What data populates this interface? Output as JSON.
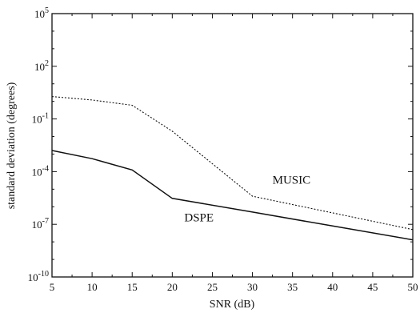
{
  "chart_data": {
    "type": "line",
    "title": "",
    "xlabel": "SNR (dB)",
    "ylabel": "standard deviation (degrees)",
    "xlim": [
      5,
      50
    ],
    "ylim_log10": [
      -10,
      5
    ],
    "y_scale": "log",
    "grid": false,
    "x_ticks": [
      5,
      10,
      15,
      20,
      25,
      30,
      35,
      40,
      45,
      50
    ],
    "x_tick_labels": [
      "5",
      "10",
      "15",
      "20",
      "25",
      "30",
      "35",
      "40",
      "45",
      "50"
    ],
    "y_ticks_log10": [
      -10,
      -7,
      -4,
      -1,
      2,
      5
    ],
    "y_tick_labels": [
      {
        "base": "10",
        "exp": "-10"
      },
      {
        "base": "10",
        "exp": "-7"
      },
      {
        "base": "10",
        "exp": "-4"
      },
      {
        "base": "10",
        "exp": "-1"
      },
      {
        "base": "10",
        "exp": "2"
      },
      {
        "base": "10",
        "exp": "5"
      }
    ],
    "series": [
      {
        "name": "MUSIC",
        "style": "dotted",
        "color": "#111111",
        "x": [
          5,
          10,
          15,
          20,
          30,
          50
        ],
        "y": [
          1.9,
          1.2,
          0.6,
          0.02,
          4e-06,
          5e-08
        ]
      },
      {
        "name": "DSPE",
        "style": "solid",
        "color": "#111111",
        "x": [
          5,
          10,
          15,
          20,
          30,
          40,
          50
        ],
        "y": [
          0.0016,
          0.00055,
          0.000125,
          3e-06,
          5e-07,
          8e-08,
          1.3e-08
        ]
      }
    ],
    "annotations": [
      {
        "text": "MUSIC",
        "x": 32.5,
        "y": 2e-05
      },
      {
        "text": "DSPE",
        "x": 21.5,
        "y": 1.5e-07
      }
    ]
  }
}
